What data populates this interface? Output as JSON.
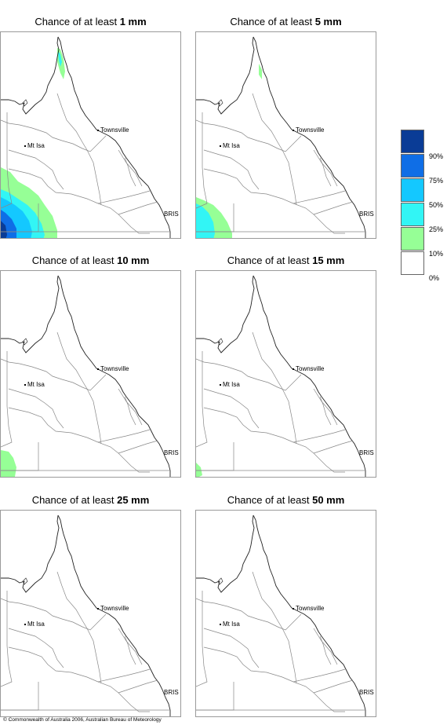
{
  "panels": [
    {
      "prefix": "Chance of at least ",
      "amount": "1 mm"
    },
    {
      "prefix": "Chance of at least ",
      "amount": "5 mm"
    },
    {
      "prefix": "Chance of at least ",
      "amount": "10 mm"
    },
    {
      "prefix": "Chance of at least ",
      "amount": "15 mm"
    },
    {
      "prefix": "Chance of at least ",
      "amount": "25 mm"
    },
    {
      "prefix": "Chance of at least ",
      "amount": "50 mm"
    }
  ],
  "map_labels": {
    "townsville": "Townsville",
    "mt_isa": "Mt Isa",
    "brisbane": "BRIS"
  },
  "legend": {
    "colors": [
      "#0a3c96",
      "#0f6ee6",
      "#14c8ff",
      "#32f5f5",
      "#96ff96",
      "#ffffff"
    ],
    "ticks": [
      "90%",
      "75%",
      "50%",
      "25%",
      "10%",
      "0%"
    ]
  },
  "copyright": "© Commonwealth of Australia 2006, Australian Bureau of Meteorology"
}
